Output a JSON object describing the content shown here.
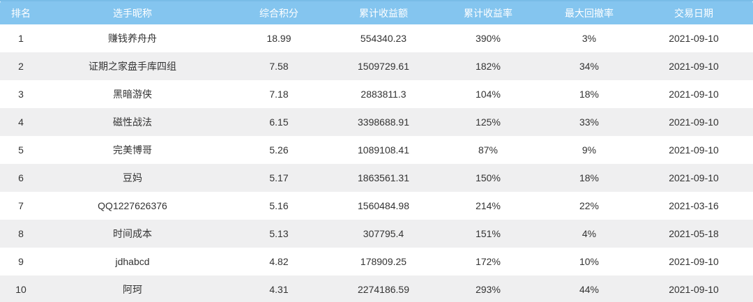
{
  "colors": {
    "header_bg": "#84C5EF",
    "header_top_edge": "#79BCE7",
    "header_text": "#FFFFFF",
    "row_bg": "#FFFFFF",
    "row_alt_bg": "#EFEFF0",
    "body_text": "#333333"
  },
  "table": {
    "columns": [
      {
        "key": "rank",
        "label": "排名"
      },
      {
        "key": "nickname",
        "label": "选手昵称"
      },
      {
        "key": "score",
        "label": "综合积分"
      },
      {
        "key": "profit",
        "label": "累计收益额"
      },
      {
        "key": "return_rate",
        "label": "累计收益率"
      },
      {
        "key": "max_drawdown",
        "label": "最大回撤率"
      },
      {
        "key": "trade_date",
        "label": "交易日期"
      }
    ],
    "rows": [
      {
        "rank": "1",
        "nickname": "赚钱养舟舟",
        "score": "18.99",
        "profit": "554340.23",
        "return_rate": "390%",
        "max_drawdown": "3%",
        "trade_date": "2021-09-10"
      },
      {
        "rank": "2",
        "nickname": "证期之家盘手库四组",
        "score": "7.58",
        "profit": "1509729.61",
        "return_rate": "182%",
        "max_drawdown": "34%",
        "trade_date": "2021-09-10"
      },
      {
        "rank": "3",
        "nickname": "黑暗游侠",
        "score": "7.18",
        "profit": "2883811.3",
        "return_rate": "104%",
        "max_drawdown": "18%",
        "trade_date": "2021-09-10"
      },
      {
        "rank": "4",
        "nickname": "磁性战法",
        "score": "6.15",
        "profit": "3398688.91",
        "return_rate": "125%",
        "max_drawdown": "33%",
        "trade_date": "2021-09-10"
      },
      {
        "rank": "5",
        "nickname": "完美博哥",
        "score": "5.26",
        "profit": "1089108.41",
        "return_rate": "87%",
        "max_drawdown": "9%",
        "trade_date": "2021-09-10"
      },
      {
        "rank": "6",
        "nickname": "豆妈",
        "score": "5.17",
        "profit": "1863561.31",
        "return_rate": "150%",
        "max_drawdown": "18%",
        "trade_date": "2021-09-10"
      },
      {
        "rank": "7",
        "nickname": "QQ1227626376",
        "score": "5.16",
        "profit": "1560484.98",
        "return_rate": "214%",
        "max_drawdown": "22%",
        "trade_date": "2021-03-16"
      },
      {
        "rank": "8",
        "nickname": "时间成本",
        "score": "5.13",
        "profit": "307795.4",
        "return_rate": "151%",
        "max_drawdown": "4%",
        "trade_date": "2021-05-18"
      },
      {
        "rank": "9",
        "nickname": "jdhabcd",
        "score": "4.82",
        "profit": "178909.25",
        "return_rate": "172%",
        "max_drawdown": "10%",
        "trade_date": "2021-09-10"
      },
      {
        "rank": "10",
        "nickname": "阿珂",
        "score": "4.31",
        "profit": "2274186.59",
        "return_rate": "293%",
        "max_drawdown": "44%",
        "trade_date": "2021-09-10"
      }
    ]
  }
}
